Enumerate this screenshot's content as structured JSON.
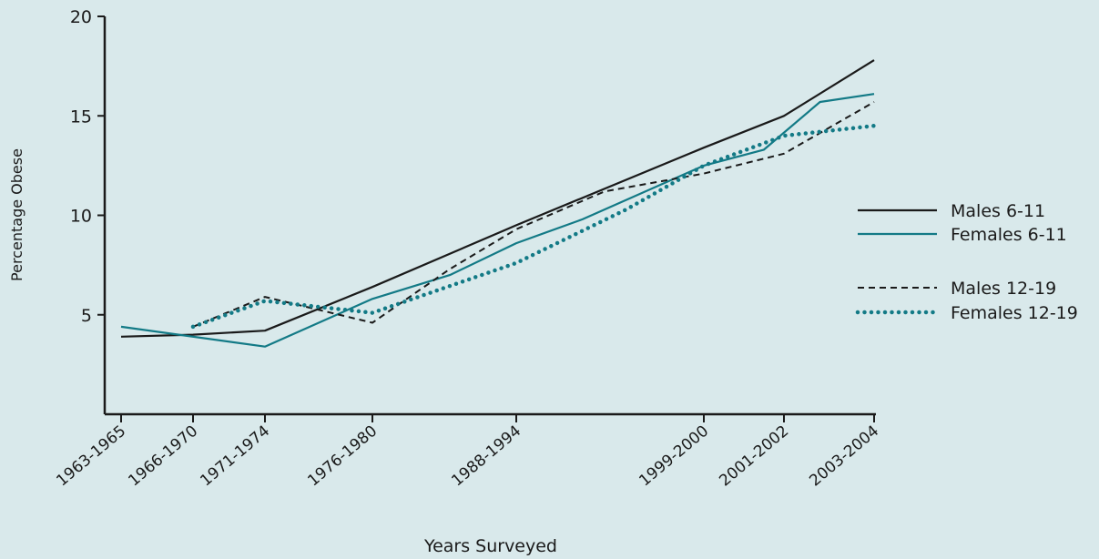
{
  "colors": {
    "background": "#d9e9eb",
    "axis": "#1a1a1a",
    "black": "#1a1a1a",
    "teal": "#137a86"
  },
  "chart_data": {
    "type": "line",
    "title": "",
    "xlabel": "Years Surveyed",
    "ylabel": "Percentage Obese",
    "ylim": [
      0,
      20
    ],
    "yticks": [
      5,
      10,
      15,
      20
    ],
    "grid": false,
    "legend_position": "right",
    "x_axis": {
      "ticks": [
        {
          "label": "1963-1965",
          "year": 1964
        },
        {
          "label": "1966-1970",
          "year": 1968
        },
        {
          "label": "1971-1974",
          "year": 1972.5
        },
        {
          "label": "1976-1980",
          "year": 1978
        },
        {
          "label": "1988-1994",
          "year": 1991
        },
        {
          "label": "1999-2000",
          "year": 1999.5
        },
        {
          "label": "2001-2002",
          "year": 2001.5
        },
        {
          "label": "2003-2004",
          "year": 2003.5
        }
      ]
    },
    "series": [
      {
        "name": "Males 6-11",
        "color": "#1a1a1a",
        "style": "solid",
        "points": [
          {
            "year": 1964,
            "value": 3.9
          },
          {
            "year": 1968,
            "value": 4.0
          },
          {
            "year": 1972.5,
            "value": 4.2
          },
          {
            "year": 1978,
            "value": 6.4
          },
          {
            "year": 1991,
            "value": 9.5
          },
          {
            "year": 1999.5,
            "value": 13.4
          },
          {
            "year": 2001.5,
            "value": 15.0
          },
          {
            "year": 2003.5,
            "value": 17.8
          }
        ]
      },
      {
        "name": "Females 6-11",
        "color": "#137a86",
        "style": "solid",
        "points": [
          {
            "year": 1964,
            "value": 4.4
          },
          {
            "year": 1972.5,
            "value": 3.4
          },
          {
            "year": 1978,
            "value": 5.8
          },
          {
            "year": 1985,
            "value": 7.0
          },
          {
            "year": 1991,
            "value": 8.6
          },
          {
            "year": 1994,
            "value": 9.8
          },
          {
            "year": 1999.5,
            "value": 12.5
          },
          {
            "year": 2001,
            "value": 13.3
          },
          {
            "year": 2002.3,
            "value": 15.7
          },
          {
            "year": 2003.5,
            "value": 16.1
          }
        ]
      },
      {
        "name": "Males 12-19",
        "color": "#1a1a1a",
        "style": "dashed",
        "points": [
          {
            "year": 1968,
            "value": 4.4
          },
          {
            "year": 1972.5,
            "value": 5.9
          },
          {
            "year": 1978,
            "value": 4.6
          },
          {
            "year": 1985,
            "value": 7.3
          },
          {
            "year": 1991,
            "value": 9.3
          },
          {
            "year": 1995,
            "value": 11.2
          },
          {
            "year": 1999.5,
            "value": 12.1
          },
          {
            "year": 2001.5,
            "value": 13.1
          },
          {
            "year": 2003.5,
            "value": 15.7
          }
        ]
      },
      {
        "name": "Females 12-19",
        "color": "#137a86",
        "style": "dotted",
        "points": [
          {
            "year": 1968,
            "value": 4.4
          },
          {
            "year": 1972.5,
            "value": 5.7
          },
          {
            "year": 1978,
            "value": 5.1
          },
          {
            "year": 1991,
            "value": 7.6
          },
          {
            "year": 1996,
            "value": 10.3
          },
          {
            "year": 1999.5,
            "value": 12.5
          },
          {
            "year": 2001.5,
            "value": 14.0
          },
          {
            "year": 2003.5,
            "value": 14.5
          }
        ]
      }
    ]
  }
}
